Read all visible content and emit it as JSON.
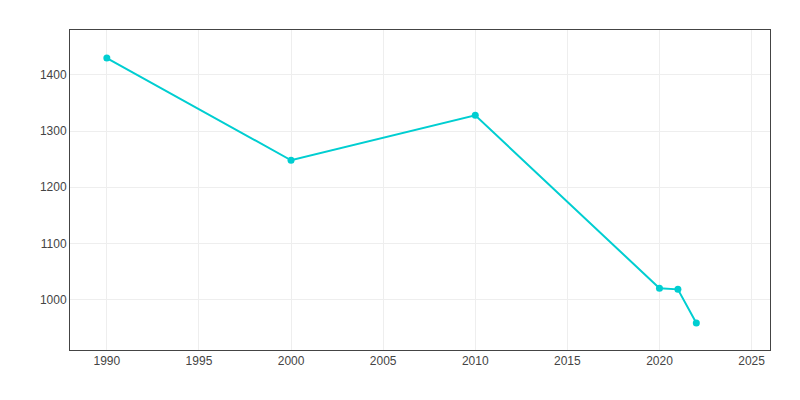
{
  "chart_data": {
    "type": "line",
    "x": [
      1990,
      2000,
      2010,
      2020,
      2021,
      2022
    ],
    "values": [
      1430,
      1248,
      1328,
      1020,
      1018,
      958
    ],
    "color": "#00CED1",
    "marker": "circle",
    "xlim": [
      1988,
      2026
    ],
    "ylim": [
      910,
      1480
    ],
    "xticks": [
      1990,
      1995,
      2000,
      2005,
      2010,
      2015,
      2020,
      2025
    ],
    "yticks": [
      1000,
      1100,
      1200,
      1300,
      1400
    ],
    "grid": true
  }
}
